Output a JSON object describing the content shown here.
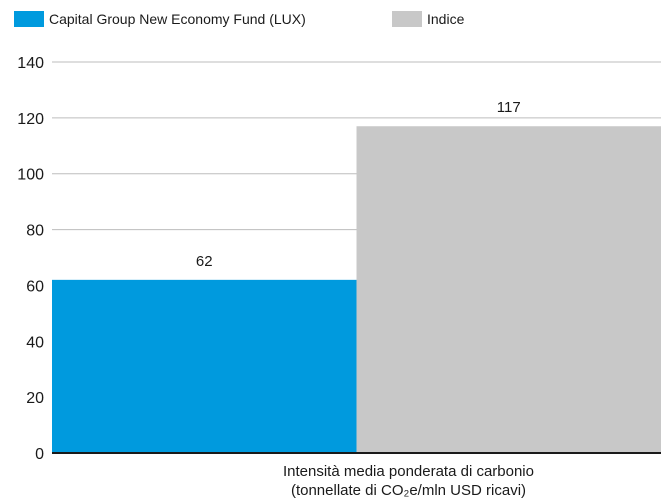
{
  "chart_data": {
    "type": "bar",
    "title": "",
    "xlabel": "",
    "ylabel": "",
    "categories": [
      [
        "Intensità media ponderata di carbonio",
        "(tonnellate di CO₂e/mln USD ricavi)"
      ]
    ],
    "series": [
      {
        "name": "Capital Group New Economy Fund (LUX)",
        "values": [
          62
        ],
        "color": "#009ADE"
      },
      {
        "name": "Indice",
        "values": [
          117
        ],
        "color": "#C8C8C8"
      }
    ],
    "data_labels": [
      "62",
      "117"
    ],
    "ylim": [
      0,
      140
    ],
    "yticks": [
      0,
      20,
      40,
      60,
      80,
      100,
      120,
      140
    ],
    "grid": true,
    "legend": "top-left"
  }
}
